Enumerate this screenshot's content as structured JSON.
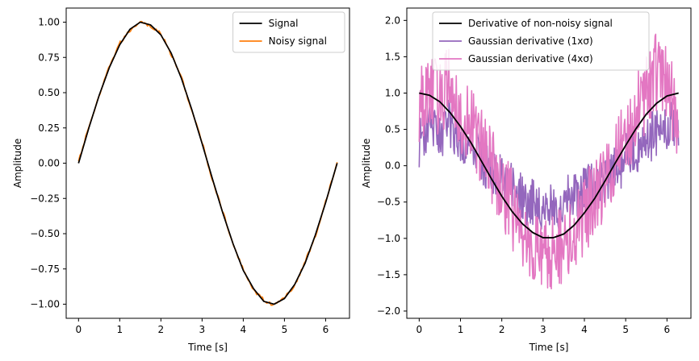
{
  "chart_data": [
    {
      "type": "line",
      "title": "",
      "xlabel": "Time [s]",
      "ylabel": "Amplitude",
      "xlim": [
        -0.3,
        6.58
      ],
      "ylim": [
        -1.1,
        1.1
      ],
      "xticks": [
        "0",
        "1",
        "2",
        "3",
        "4",
        "5",
        "6"
      ],
      "yticks": [
        "-1.00",
        "-0.75",
        "-0.50",
        "-0.25",
        "0.00",
        "0.25",
        "0.50",
        "0.75",
        "1.00"
      ],
      "legend_position": "top-right",
      "series": [
        {
          "name": "Signal",
          "color": "#000000",
          "x": [
            0,
            0.25,
            0.5,
            0.75,
            1.0,
            1.25,
            1.5,
            1.75,
            2.0,
            2.25,
            2.5,
            2.75,
            3.0,
            3.25,
            3.5,
            3.75,
            4.0,
            4.25,
            4.5,
            4.75,
            5.0,
            5.25,
            5.5,
            5.75,
            6.0,
            6.28
          ],
          "y": [
            0.0,
            0.25,
            0.48,
            0.68,
            0.84,
            0.95,
            1.0,
            0.98,
            0.91,
            0.78,
            0.6,
            0.38,
            0.14,
            -0.11,
            -0.35,
            -0.57,
            -0.76,
            -0.89,
            -0.98,
            -1.0,
            -0.96,
            -0.86,
            -0.71,
            -0.51,
            -0.28,
            0.0
          ]
        },
        {
          "name": "Noisy signal",
          "color": "#ff7f0e",
          "x": [
            0,
            0.25,
            0.5,
            0.75,
            1.0,
            1.25,
            1.5,
            1.75,
            2.0,
            2.25,
            2.5,
            2.75,
            3.0,
            3.25,
            3.5,
            3.75,
            4.0,
            4.25,
            4.5,
            4.75,
            5.0,
            5.25,
            5.5,
            5.75,
            6.0,
            6.28
          ],
          "y": [
            0.01,
            0.26,
            0.47,
            0.69,
            0.85,
            0.94,
            1.01,
            0.97,
            0.92,
            0.77,
            0.61,
            0.37,
            0.15,
            -0.12,
            -0.34,
            -0.58,
            -0.75,
            -0.9,
            -0.97,
            -1.01,
            -0.95,
            -0.87,
            -0.7,
            -0.52,
            -0.27,
            0.0
          ]
        }
      ]
    },
    {
      "type": "line",
      "title": "",
      "xlabel": "Time [s]",
      "ylabel": "Amplitude",
      "xlim": [
        -0.3,
        6.58
      ],
      "ylim": [
        -2.1,
        2.17
      ],
      "xticks": [
        "0",
        "1",
        "2",
        "3",
        "4",
        "5",
        "6"
      ],
      "yticks": [
        "-2.0",
        "-1.5",
        "-1.0",
        "-0.5",
        "0.0",
        "0.5",
        "1.0",
        "1.5",
        "2.0"
      ],
      "legend_position": "top-center",
      "series": [
        {
          "name": "Derivative of non-noisy signal",
          "color": "#000000",
          "x": [
            0,
            0.25,
            0.5,
            0.75,
            1.0,
            1.25,
            1.5,
            1.75,
            2.0,
            2.25,
            2.5,
            2.75,
            3.0,
            3.25,
            3.5,
            3.75,
            4.0,
            4.25,
            4.5,
            4.75,
            5.0,
            5.25,
            5.5,
            5.75,
            6.0,
            6.28
          ],
          "y": [
            1.0,
            0.97,
            0.88,
            0.73,
            0.54,
            0.32,
            0.07,
            -0.18,
            -0.42,
            -0.63,
            -0.8,
            -0.92,
            -0.99,
            -0.99,
            -0.94,
            -0.82,
            -0.65,
            -0.45,
            -0.21,
            0.04,
            0.28,
            0.51,
            0.71,
            0.86,
            0.96,
            1.0
          ]
        },
        {
          "name": "Gaussian derivative (1xσ)",
          "color": "#9467bd",
          "x": [
            0,
            0.25,
            0.5,
            0.75,
            1.0,
            1.25,
            1.5,
            1.75,
            2.0,
            2.25,
            2.5,
            2.75,
            3.0,
            3.25,
            3.5,
            3.75,
            4.0,
            4.25,
            4.5,
            4.75,
            5.0,
            5.25,
            5.5,
            5.75,
            6.0,
            6.28
          ],
          "y": [
            0.3,
            0.55,
            0.4,
            0.6,
            0.35,
            0.2,
            0.1,
            -0.05,
            -0.2,
            -0.3,
            -0.45,
            -0.5,
            -0.55,
            -0.6,
            -0.5,
            -0.45,
            -0.35,
            -0.3,
            -0.2,
            -0.05,
            0.1,
            0.2,
            0.35,
            0.45,
            0.55,
            0.6
          ]
        },
        {
          "name": "Gaussian derivative (4xσ)",
          "color": "#e377c2",
          "x": [
            0,
            0.25,
            0.5,
            0.75,
            1.0,
            1.25,
            1.5,
            1.75,
            2.0,
            2.25,
            2.5,
            2.75,
            3.0,
            3.25,
            3.5,
            3.75,
            4.0,
            4.25,
            4.5,
            4.75,
            5.0,
            5.25,
            5.5,
            5.75,
            6.0,
            6.28
          ],
          "y": [
            0.8,
            1.1,
            0.9,
            1.2,
            0.7,
            0.5,
            0.3,
            0.0,
            -0.3,
            -0.6,
            -0.9,
            -1.2,
            -1.3,
            -1.2,
            -1.1,
            -0.9,
            -0.7,
            -0.4,
            -0.2,
            0.1,
            0.4,
            0.7,
            1.0,
            1.3,
            1.2,
            0.5
          ]
        }
      ]
    }
  ]
}
